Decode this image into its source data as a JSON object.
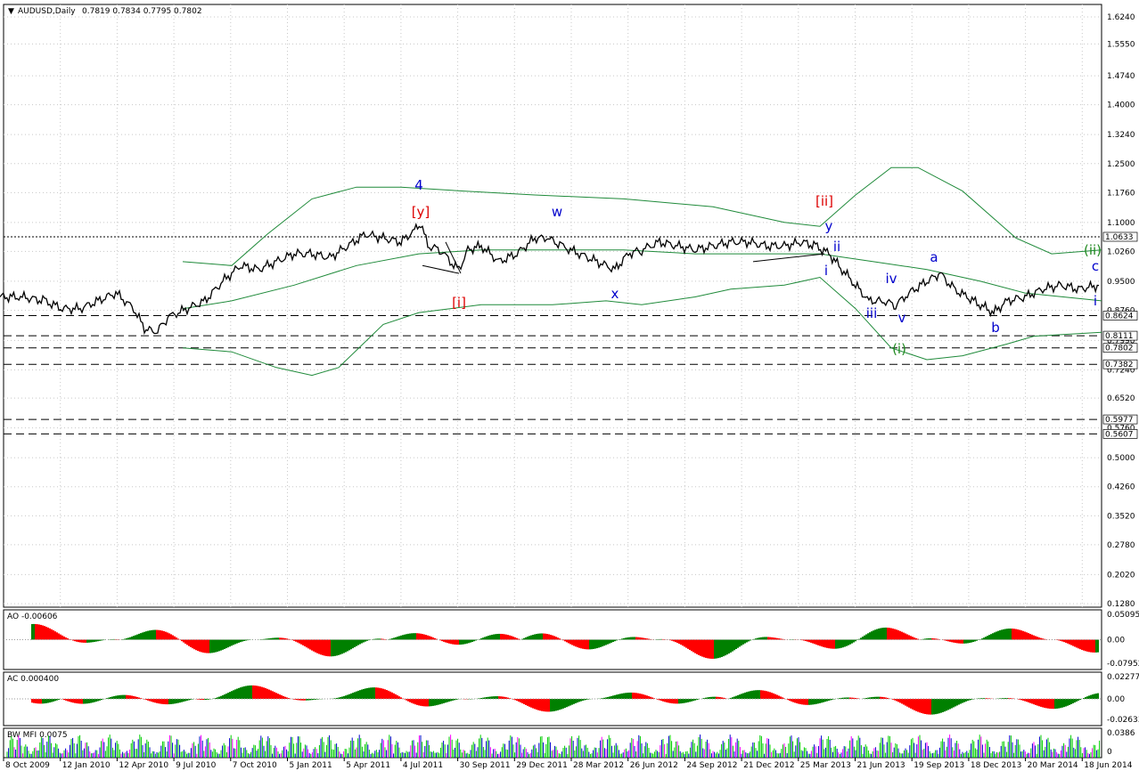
{
  "header": {
    "symbol": "AUDUSD,Daily",
    "ohlc": "0.7819 0.7834 0.7795 0.7802"
  },
  "colors": {
    "price": "#000000",
    "bands": "#1f8a3a",
    "up_bar": "#008000",
    "down_bar": "#ff0000",
    "mfi_bar": "#00cc00",
    "wave_blue": "#0000cc",
    "wave_red": "#dd0000",
    "wave_green": "#228b22",
    "grid": "#c8c8c8"
  },
  "panels": {
    "ao": {
      "title": "AO -0.00606",
      "ticks": [
        "0.05095",
        "0.00",
        "-0.07952"
      ]
    },
    "ac": {
      "title": "AC 0.000400",
      "ticks": [
        "0.022777",
        "0.00",
        "-0.02633"
      ]
    },
    "mfi": {
      "title": "BW MFI 0.0075",
      "ticks": [
        "0.0386",
        "0"
      ]
    }
  },
  "chart_data": {
    "type": "line",
    "title": "AUDUSD,Daily",
    "ylim": [
      0.128,
      1.624
    ],
    "grid": true,
    "y_ticks": [
      "1.6240",
      "1.5550",
      "1.4740",
      "1.4000",
      "1.3240",
      "1.2500",
      "1.1760",
      "1.1000",
      "1.0260",
      "0.9500",
      "0.8760",
      "0.7990",
      "0.7240",
      "0.6520",
      "0.5760",
      "0.5000",
      "0.4260",
      "0.3520",
      "0.2780",
      "0.2020",
      "0.1280"
    ],
    "x_ticks": [
      "8 Oct 2009",
      "12 Jan 2010",
      "12 Apr 2010",
      "9 Jul 2010",
      "7 Oct 2010",
      "5 Jan 2011",
      "5 Apr 2011",
      "4 Jul 2011",
      "30 Sep 2011",
      "29 Dec 2011",
      "28 Mar 2012",
      "26 Jun 2012",
      "24 Sep 2012",
      "21 Dec 2012",
      "25 Mar 2013",
      "21 Jun 2013",
      "19 Sep 2013",
      "18 Dec 2013",
      "20 Mar 2014",
      "18 Jun 2014"
    ],
    "price_series": [
      [
        0,
        0.91
      ],
      [
        25,
        0.91
      ],
      [
        50,
        0.9
      ],
      [
        70,
        0.88
      ],
      [
        90,
        0.88
      ],
      [
        110,
        0.9
      ],
      [
        130,
        0.92
      ],
      [
        150,
        0.88
      ],
      [
        162,
        0.83
      ],
      [
        175,
        0.82
      ],
      [
        190,
        0.86
      ],
      [
        210,
        0.88
      ],
      [
        230,
        0.9
      ],
      [
        250,
        0.95
      ],
      [
        270,
        0.99
      ],
      [
        290,
        0.98
      ],
      [
        310,
        1.0
      ],
      [
        330,
        1.02
      ],
      [
        350,
        1.02
      ],
      [
        370,
        1.01
      ],
      [
        390,
        1.04
      ],
      [
        410,
        1.07
      ],
      [
        430,
        1.06
      ],
      [
        450,
        1.05
      ],
      [
        465,
        1.08
      ],
      [
        472,
        1.1
      ],
      [
        480,
        1.04
      ],
      [
        495,
        1.03
      ],
      [
        505,
        1.0
      ],
      [
        515,
        0.98
      ],
      [
        525,
        1.03
      ],
      [
        540,
        1.04
      ],
      [
        560,
        1.0
      ],
      [
        580,
        1.02
      ],
      [
        600,
        1.06
      ],
      [
        615,
        1.06
      ],
      [
        630,
        1.04
      ],
      [
        650,
        1.02
      ],
      [
        670,
        1.0
      ],
      [
        690,
        0.98
      ],
      [
        705,
        1.02
      ],
      [
        720,
        1.03
      ],
      [
        740,
        1.05
      ],
      [
        760,
        1.04
      ],
      [
        780,
        1.03
      ],
      [
        800,
        1.04
      ],
      [
        820,
        1.05
      ],
      [
        840,
        1.05
      ],
      [
        860,
        1.04
      ],
      [
        880,
        1.04
      ],
      [
        900,
        1.05
      ],
      [
        915,
        1.04
      ],
      [
        930,
        1.02
      ],
      [
        945,
        0.98
      ],
      [
        960,
        0.94
      ],
      [
        975,
        0.9
      ],
      [
        990,
        0.9
      ],
      [
        1005,
        0.89
      ],
      [
        1020,
        0.92
      ],
      [
        1040,
        0.95
      ],
      [
        1055,
        0.97
      ],
      [
        1070,
        0.93
      ],
      [
        1085,
        0.91
      ],
      [
        1100,
        0.89
      ],
      [
        1115,
        0.87
      ],
      [
        1130,
        0.9
      ],
      [
        1150,
        0.91
      ],
      [
        1170,
        0.93
      ],
      [
        1190,
        0.94
      ],
      [
        1210,
        0.93
      ],
      [
        1235,
        0.94
      ]
    ],
    "price_series_note": "x = bar index across the visible range, y = price",
    "horizontal_levels": [
      "1.0633",
      "0.8624",
      "0.8111",
      "0.7802",
      "0.7382",
      "0.5977",
      "0.5607"
    ],
    "wave_labels": [
      {
        "text": "4",
        "color": "wave_blue"
      },
      {
        "text": "[y]",
        "color": "wave_red"
      },
      {
        "text": "[i]",
        "color": "wave_red"
      },
      {
        "text": "w",
        "color": "wave_blue"
      },
      {
        "text": "x",
        "color": "wave_blue"
      },
      {
        "text": "[ii]",
        "color": "wave_red"
      },
      {
        "text": "y",
        "color": "wave_blue"
      },
      {
        "text": "ii",
        "color": "wave_blue"
      },
      {
        "text": "i",
        "color": "wave_blue"
      },
      {
        "text": "iii",
        "color": "wave_blue"
      },
      {
        "text": "iv",
        "color": "wave_blue"
      },
      {
        "text": "v",
        "color": "wave_blue"
      },
      {
        "text": "(i)",
        "color": "wave_green"
      },
      {
        "text": "a",
        "color": "wave_blue"
      },
      {
        "text": "b",
        "color": "wave_blue"
      },
      {
        "text": "(ii)",
        "color": "wave_green"
      },
      {
        "text": "c",
        "color": "wave_blue"
      },
      {
        "text": "i",
        "color": "wave_blue"
      }
    ]
  }
}
